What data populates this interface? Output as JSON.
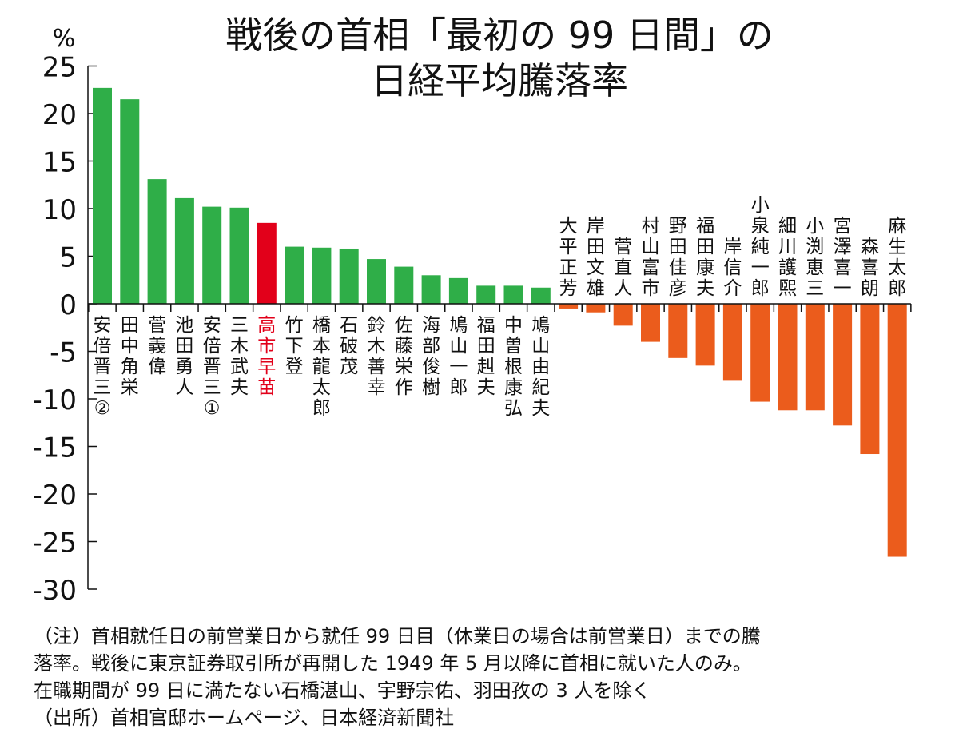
{
  "chart_data": {
    "type": "bar",
    "title_lines": [
      "戦後の首相「最初の 99 日間」の",
      "日経平均騰落率"
    ],
    "unit_label": "%",
    "ylim": [
      -30,
      25
    ],
    "yticks": [
      25,
      20,
      15,
      10,
      5,
      0,
      -5,
      -10,
      -15,
      -20,
      -25,
      -30
    ],
    "ytick_labels": [
      "25",
      "20",
      "15",
      "10",
      "5",
      "0",
      "-5",
      "-10",
      "-15",
      "-20",
      "-25",
      "-30"
    ],
    "grid": false,
    "categories": [
      "安倍晋三②",
      "田中角栄",
      "菅義偉",
      "池田勇人",
      "安倍晋三①",
      "三木武夫",
      "高市早苗",
      "竹下登",
      "橋本龍太郎",
      "石破茂",
      "鈴木善幸",
      "佐藤栄作",
      "海部俊樹",
      "鳩山一郎",
      "福田赳夫",
      "中曽根康弘",
      "鳩山由紀夫",
      "大平正芳",
      "岸田文雄",
      "菅直人",
      "村山富市",
      "野田佳彦",
      "福田康夫",
      "岸信介",
      "小泉純一郎",
      "細川護煕",
      "小渕恵三",
      "宮澤喜一",
      "森喜朗",
      "麻生太郎"
    ],
    "values": [
      22.7,
      21.5,
      13.1,
      11.1,
      10.2,
      10.1,
      8.5,
      6.0,
      5.9,
      5.8,
      4.7,
      3.9,
      3.0,
      2.7,
      1.9,
      1.9,
      1.7,
      -0.5,
      -0.9,
      -2.3,
      -4.0,
      -5.7,
      -6.5,
      -8.1,
      -10.3,
      -11.2,
      -11.2,
      -12.8,
      -15.8,
      -26.6
    ],
    "colors": {
      "positive": "#2fae48",
      "negative": "#eb5c1c",
      "highlight": "#e2001a",
      "highlight_category": "高市早苗",
      "axis": "#111111",
      "text": "#111111"
    }
  },
  "notes": [
    "（注）首相就任日の前営業日から就任 99 日目（休業日の場合は前営業日）までの騰",
    "落率。戦後に東京証券取引所が再開した 1949 年 5 月以降に首相に就いた人のみ。",
    "在職期間が 99 日に満たない石橋湛山、宇野宗佑、羽田孜の 3 人を除く",
    "（出所）首相官邸ホームページ、日本経済新聞社"
  ]
}
